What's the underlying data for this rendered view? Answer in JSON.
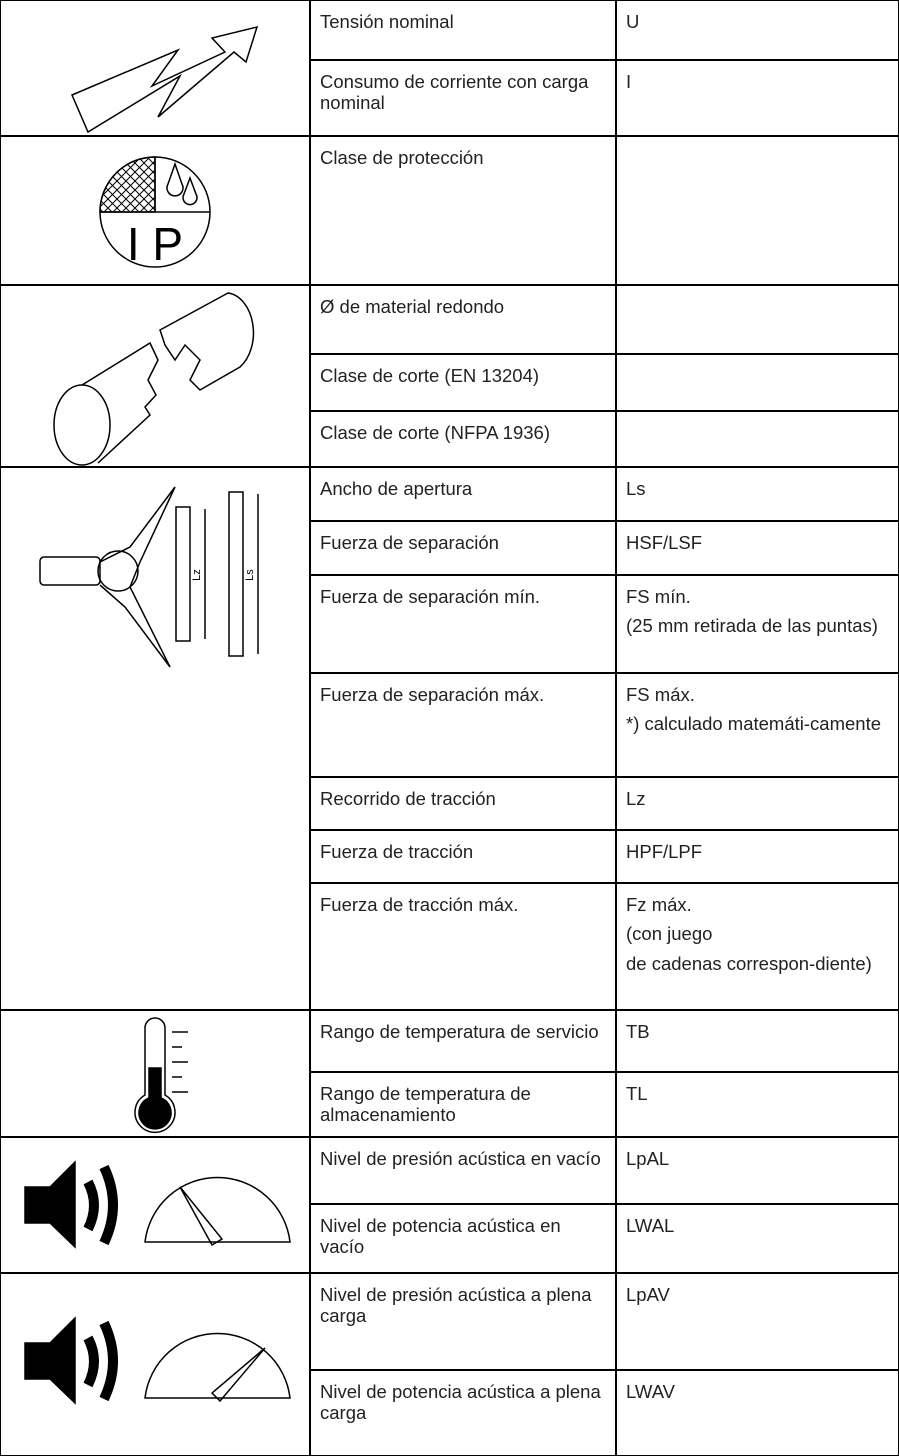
{
  "icons": {
    "protection": "I P",
    "caliper": [
      "Lz",
      "Ls"
    ]
  },
  "table": {
    "groups": [
      {
        "rows": [
          {
            "label": "Tensión nominal",
            "value": [
              "U"
            ]
          },
          {
            "label": "Consumo de corriente con carga nominal",
            "value": [
              "I"
            ]
          }
        ]
      },
      {
        "rows": [
          {
            "label": "Clase de protección",
            "value": []
          }
        ]
      },
      {
        "rows": [
          {
            "label": "Ø de material redondo",
            "value": []
          },
          {
            "label": "Clase de corte (EN 13204)",
            "value": []
          },
          {
            "label": "Clase de corte (NFPA 1936)",
            "value": []
          }
        ]
      },
      {
        "rows": [
          {
            "label": "Ancho de apertura",
            "value": [
              "Ls"
            ]
          },
          {
            "label": "Fuerza de separación",
            "value": [
              "HSF/LSF"
            ]
          },
          {
            "label": "Fuerza de separación mín.",
            "value": [
              "FS mín.",
              "(25 mm retirada de las puntas)"
            ]
          },
          {
            "label": "Fuerza de separación máx.",
            "value": [
              "FS máx.",
              "*) calculado matemáti-camente"
            ]
          },
          {
            "label": "Recorrido de tracción",
            "value": [
              "Lz"
            ]
          },
          {
            "label": "Fuerza de tracción",
            "value": [
              "HPF/LPF"
            ]
          },
          {
            "label": "Fuerza de tracción máx.",
            "value": [
              "Fz máx.",
              "(con juego",
              "de cadenas correspon-diente)"
            ]
          }
        ]
      },
      {
        "rows": [
          {
            "label": "Rango de temperatura de servicio",
            "value": [
              "TB"
            ]
          },
          {
            "label": "Rango de temperatura de almacenamiento",
            "value": [
              "TL"
            ]
          }
        ]
      },
      {
        "rows": [
          {
            "label": "Nivel de presión acústica en vacío",
            "value": [
              "LpAL"
            ]
          },
          {
            "label": "Nivel de potencia acústica en vacío",
            "value": [
              "LWAL"
            ]
          }
        ]
      },
      {
        "rows": [
          {
            "label": "Nivel de presión acústica a plena carga",
            "value": [
              "LpAV"
            ]
          },
          {
            "label": "Nivel de potencia acústica a plena carga",
            "value": [
              "LWAV"
            ]
          }
        ]
      }
    ]
  }
}
